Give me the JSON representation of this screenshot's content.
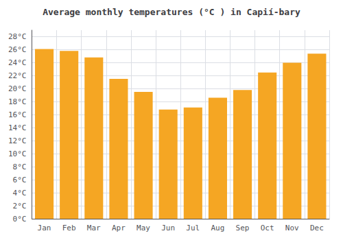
{
  "chart_data": {
    "type": "bar",
    "title": "Average monthly temperatures (°C ) in Capií-bary",
    "categories": [
      "Jan",
      "Feb",
      "Mar",
      "Apr",
      "May",
      "Jun",
      "Jul",
      "Aug",
      "Sep",
      "Oct",
      "Nov",
      "Dec"
    ],
    "values": [
      26.1,
      25.8,
      24.8,
      21.5,
      19.5,
      16.8,
      17.1,
      18.6,
      19.8,
      22.5,
      24.0,
      25.4
    ],
    "color": "#F5A623",
    "ylim": [
      0,
      29
    ],
    "yticks": [
      {
        "value": 0,
        "label": "0°C"
      },
      {
        "value": 2,
        "label": "2°C"
      },
      {
        "value": 4,
        "label": "4°C"
      },
      {
        "value": 6,
        "label": "6°C"
      },
      {
        "value": 8,
        "label": "8°C"
      },
      {
        "value": 10,
        "label": "10°C"
      },
      {
        "value": 12,
        "label": "12°C"
      },
      {
        "value": 14,
        "label": "14°C"
      },
      {
        "value": 16,
        "label": "16°C"
      },
      {
        "value": 18,
        "label": "18°C"
      },
      {
        "value": 20,
        "label": "20°C"
      },
      {
        "value": 22,
        "label": "22°C"
      },
      {
        "value": 24,
        "label": "24°C"
      },
      {
        "value": 26,
        "label": "26°C"
      },
      {
        "value": 28,
        "label": "28°C"
      }
    ],
    "grid": true
  }
}
